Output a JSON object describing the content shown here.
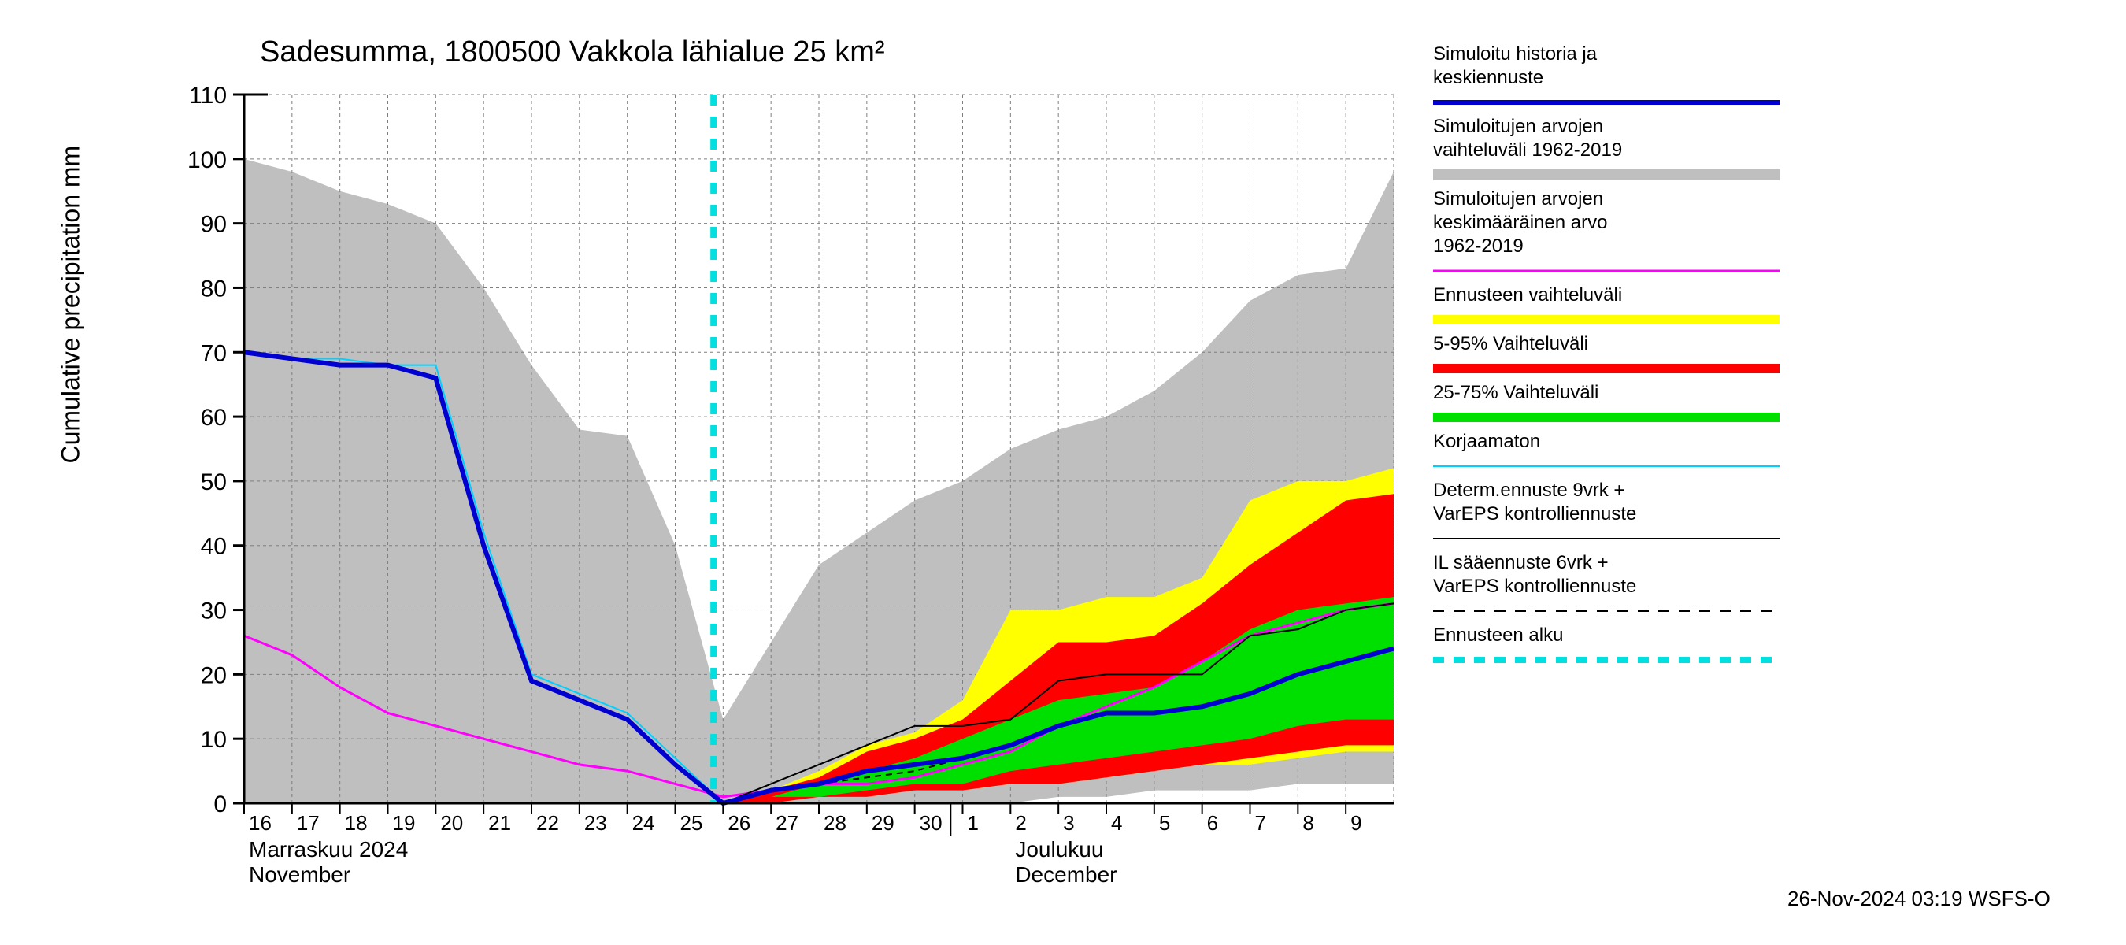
{
  "title": "Sadesumma, 1800500 Vakkola lähialue 25 km²",
  "ylabel": "Cumulative precipitation   mm",
  "footer": "26-Nov-2024 03:19 WSFS-O",
  "xaxis": {
    "ticks": [
      "16",
      "17",
      "18",
      "19",
      "20",
      "21",
      "22",
      "23",
      "24",
      "25",
      "26",
      "27",
      "28",
      "29",
      "30",
      "1",
      "2",
      "3",
      "4",
      "5",
      "6",
      "7",
      "8",
      "9"
    ],
    "month1_fi": "Marraskuu 2024",
    "month1_en": "November",
    "month2_fi": "Joulukuu",
    "month2_en": "December"
  },
  "yaxis": {
    "ticks": [
      0,
      10,
      20,
      30,
      40,
      50,
      60,
      70,
      80,
      90,
      100,
      110
    ],
    "ylim": [
      0,
      110
    ]
  },
  "colors": {
    "background": "#ffffff",
    "grid": "#7f7f7f",
    "border": "#000000",
    "gray_band": "#bfbfbf",
    "yellow_band": "#ffff00",
    "red_band": "#ff0000",
    "green_band": "#00e000",
    "blue_line": "#0000d0",
    "cyan_line": "#00d0ff",
    "magenta_line": "#ff00ff",
    "black_line": "#000000",
    "cyan_dash": "#00e0e0"
  },
  "line_widths": {
    "blue_line": 6,
    "magenta_line": 3,
    "cyan_line": 2,
    "black_thin": 2,
    "cyan_dash": 8,
    "yellow_legend": 12,
    "red_legend": 12,
    "green_legend": 12,
    "gray_legend": 14
  },
  "legend": [
    {
      "text_lines": [
        "Simuloitu historia ja",
        "keskiennuste"
      ],
      "color": "#0000d0",
      "style": "solid",
      "width": 6
    },
    {
      "text_lines": [
        "Simuloitujen arvojen",
        "vaihteluväli 1962-2019"
      ],
      "color": "#bfbfbf",
      "style": "solid",
      "width": 14
    },
    {
      "text_lines": [
        "Simuloitujen arvojen",
        "keskimääräinen arvo",
        "  1962-2019"
      ],
      "color": "#ff00ff",
      "style": "solid",
      "width": 3
    },
    {
      "text_lines": [
        "Ennusteen vaihteluväli"
      ],
      "color": "#ffff00",
      "style": "solid",
      "width": 12
    },
    {
      "text_lines": [
        "5-95% Vaihteluväli"
      ],
      "color": "#ff0000",
      "style": "solid",
      "width": 12
    },
    {
      "text_lines": [
        "25-75% Vaihteluväli"
      ],
      "color": "#00e000",
      "style": "solid",
      "width": 12
    },
    {
      "text_lines": [
        "Korjaamaton"
      ],
      "color": "#00d0ff",
      "style": "solid",
      "width": 2
    },
    {
      "text_lines": [
        "Determ.ennuste 9vrk +",
        "VarEPS kontrolliennuste"
      ],
      "color": "#000000",
      "style": "solid",
      "width": 2
    },
    {
      "text_lines": [
        "IL sääennuste 6vrk  +",
        " VarEPS kontrolliennuste"
      ],
      "color": "#000000",
      "style": "dash",
      "width": 2
    },
    {
      "text_lines": [
        "Ennusteen alku"
      ],
      "color": "#00e0e0",
      "style": "dash",
      "width": 8
    }
  ],
  "series": {
    "gray_upper": [
      100,
      98,
      95,
      93,
      90,
      80,
      68,
      58,
      57,
      40,
      13,
      25,
      37,
      42,
      47,
      50,
      55,
      58,
      60,
      64,
      70,
      78,
      82,
      83,
      98
    ],
    "gray_lower": [
      0,
      0,
      0,
      0,
      0,
      0,
      0,
      0,
      0,
      0,
      0,
      0,
      0,
      0,
      0,
      0,
      0,
      1,
      1,
      2,
      2,
      2,
      3,
      3,
      3
    ],
    "yellow_upper": [
      0,
      0,
      0,
      0,
      0,
      0,
      0,
      0,
      0,
      0,
      0,
      2,
      5,
      9,
      11,
      16,
      30,
      30,
      32,
      32,
      35,
      47,
      50,
      50,
      52
    ],
    "yellow_lower": [
      0,
      0,
      0,
      0,
      0,
      0,
      0,
      0,
      0,
      0,
      0,
      0,
      1,
      1,
      2,
      2,
      3,
      3,
      4,
      5,
      6,
      6,
      7,
      8,
      8
    ],
    "red_upper": [
      0,
      0,
      0,
      0,
      0,
      0,
      0,
      0,
      0,
      0,
      0,
      2,
      4,
      8,
      10,
      13,
      19,
      25,
      25,
      26,
      31,
      37,
      42,
      47,
      48
    ],
    "red_lower": [
      0,
      0,
      0,
      0,
      0,
      0,
      0,
      0,
      0,
      0,
      0,
      0,
      1,
      1,
      2,
      2,
      3,
      3,
      4,
      5,
      6,
      7,
      8,
      9,
      9
    ],
    "green_upper": [
      0,
      0,
      0,
      0,
      0,
      0,
      0,
      0,
      0,
      0,
      0,
      1,
      3,
      5,
      7,
      10,
      13,
      16,
      17,
      18,
      22,
      27,
      30,
      31,
      32
    ],
    "green_lower": [
      0,
      0,
      0,
      0,
      0,
      0,
      0,
      0,
      0,
      0,
      0,
      1,
      1,
      2,
      3,
      3,
      5,
      6,
      7,
      8,
      9,
      10,
      12,
      13,
      13
    ],
    "blue": [
      70,
      69,
      68,
      68,
      66,
      40,
      19,
      16,
      13,
      6,
      0,
      2,
      3,
      5,
      6,
      7,
      9,
      12,
      14,
      14,
      15,
      17,
      20,
      22,
      24
    ],
    "cyan": [
      70,
      69,
      69,
      68,
      68,
      42,
      20,
      17,
      14,
      7,
      0,
      2,
      3,
      5,
      6,
      7,
      9,
      12,
      14,
      14,
      15,
      17,
      20,
      22,
      24
    ],
    "magenta": [
      26,
      23,
      18,
      14,
      12,
      10,
      8,
      6,
      5,
      3,
      1,
      2,
      3,
      3,
      4,
      6,
      8,
      12,
      15,
      18,
      22,
      26,
      28,
      30,
      31
    ],
    "det_black": [
      0,
      0,
      0,
      0,
      0,
      0,
      0,
      0,
      0,
      0,
      0,
      3,
      6,
      9,
      12,
      12,
      13,
      19,
      20,
      20,
      20,
      26,
      27,
      30,
      31
    ],
    "il_black": [
      0,
      0,
      0,
      0,
      0,
      0,
      0,
      0,
      0,
      0,
      0,
      2,
      3,
      4,
      5,
      7,
      9,
      12,
      14,
      14,
      15,
      17,
      20,
      22,
      24
    ]
  },
  "ref_line_x_index": 9.8
}
